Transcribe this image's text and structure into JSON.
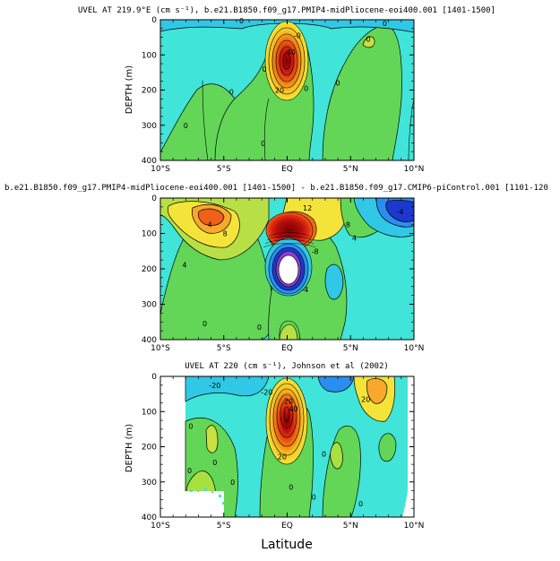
{
  "chart_data": [
    {
      "type": "heatmap",
      "title": "UVEL AT 219.9°E (cm s⁻¹), b.e21.B1850.f09_g17.PMIP4-midPliocene-eoi400.001 [1401-1500]",
      "xlabel": "",
      "ylabel": "DEPTH (m)",
      "x_ticks": [
        "10°S",
        "5°S",
        "EQ",
        "5°N",
        "10°N"
      ],
      "y_ticks": [
        "0",
        "100",
        "200",
        "300",
        "400"
      ],
      "xlim": [
        -10,
        10
      ],
      "ylim": [
        400,
        0
      ],
      "contour_labels": [
        {
          "text": "40",
          "lat": 0.3,
          "depth": 92
        },
        {
          "text": "20",
          "lat": -0.6,
          "depth": 200
        },
        {
          "text": "-0",
          "lat": 0.8,
          "depth": 45
        },
        {
          "text": "0",
          "lat": -4.4,
          "depth": 205
        },
        {
          "text": "0",
          "lat": -8.0,
          "depth": 300
        },
        {
          "text": "0",
          "lat": -1.8,
          "depth": 140
        },
        {
          "text": "0",
          "lat": 1.5,
          "depth": 195
        },
        {
          "text": "0",
          "lat": 6.4,
          "depth": 55
        },
        {
          "text": "0",
          "lat": 4.0,
          "depth": 180
        },
        {
          "text": "0",
          "lat": 7.7,
          "depth": 10
        },
        {
          "text": "0",
          "lat": -1.9,
          "depth": 352
        },
        {
          "text": "0",
          "lat": -3.6,
          "depth": 3
        }
      ],
      "features": [
        {
          "kind": "eastward core (EUC)",
          "lat": 0,
          "depth": 110,
          "max": 100
        },
        {
          "kind": "westward surface flow",
          "lat_range": [
            -10,
            10
          ],
          "depth_range": [
            0,
            60
          ]
        }
      ]
    },
    {
      "type": "heatmap",
      "title": "b.e21.B1850.f09_g17.PMIP4-midPliocene-eoi400.001 [1401-1500] - b.e21.B1850.f09_g17.CMIP6-piControl.001 [1101-120",
      "xlabel": "",
      "ylabel": "",
      "x_ticks": [
        "10°S",
        "5°S",
        "EQ",
        "5°N",
        "10°N"
      ],
      "y_ticks": [
        "0",
        "100",
        "200",
        "300",
        "400"
      ],
      "xlim": [
        -10,
        10
      ],
      "ylim": [
        400,
        0
      ],
      "contour_labels": [
        {
          "text": "12",
          "lat": 1.6,
          "depth": 28
        },
        {
          "text": "8",
          "lat": -4.9,
          "depth": 100
        },
        {
          "text": "4",
          "lat": -6.1,
          "depth": 75
        },
        {
          "text": "4",
          "lat": -8.1,
          "depth": 188
        },
        {
          "text": "-4",
          "lat": 1.4,
          "depth": 258
        },
        {
          "text": "-8",
          "lat": 2.2,
          "depth": 150
        },
        {
          "text": "4",
          "lat": 5.3,
          "depth": 113
        },
        {
          "text": "8",
          "lat": 4.8,
          "depth": 75
        },
        {
          "text": "-4",
          "lat": 8.9,
          "depth": 38
        },
        {
          "text": "0",
          "lat": -2.2,
          "depth": 365
        },
        {
          "text": "0",
          "lat": -6.5,
          "depth": 355
        }
      ],
      "features": [
        {
          "kind": "positive anomaly",
          "lat": 0,
          "depth": 75,
          "max": 20
        },
        {
          "kind": "negative anomaly",
          "lat": 0,
          "depth": 200,
          "min": -20
        }
      ]
    },
    {
      "type": "heatmap",
      "title": "UVEL AT 220 (cm s⁻¹), Johnson et al (2002)",
      "xlabel": "Latitude",
      "ylabel": "DEPTH (m)",
      "x_ticks": [
        "10°S",
        "5°S",
        "EQ",
        "5°N",
        "10°N"
      ],
      "y_ticks": [
        "0",
        "100",
        "200",
        "300",
        "400"
      ],
      "xlim": [
        -10,
        10
      ],
      "ylim": [
        400,
        0
      ],
      "data_extent_lat": [
        -7.9,
        9.5
      ],
      "contour_labels": [
        {
          "text": "-20",
          "lat": -1.6,
          "depth": 45
        },
        {
          "text": "-20",
          "lat": -5.7,
          "depth": 25
        },
        {
          "text": "20",
          "lat": 6.2,
          "depth": 65
        },
        {
          "text": "20",
          "lat": 0.1,
          "depth": 70
        },
        {
          "text": "40",
          "lat": 0.5,
          "depth": 92
        },
        {
          "text": "20",
          "lat": -0.4,
          "depth": 228
        },
        {
          "text": "0",
          "lat": -7.6,
          "depth": 142
        },
        {
          "text": "0",
          "lat": -5.7,
          "depth": 245
        },
        {
          "text": "0",
          "lat": -4.3,
          "depth": 300
        },
        {
          "text": "0",
          "lat": -7.7,
          "depth": 268
        },
        {
          "text": "0",
          "lat": 0.3,
          "depth": 315
        },
        {
          "text": "0",
          "lat": 2.1,
          "depth": 343
        },
        {
          "text": "0",
          "lat": 2.9,
          "depth": 220
        },
        {
          "text": "0",
          "lat": 5.8,
          "depth": 362
        }
      ],
      "features": [
        {
          "kind": "eastward core (EUC)",
          "lat": 0,
          "depth": 110,
          "max": 100
        }
      ]
    }
  ]
}
